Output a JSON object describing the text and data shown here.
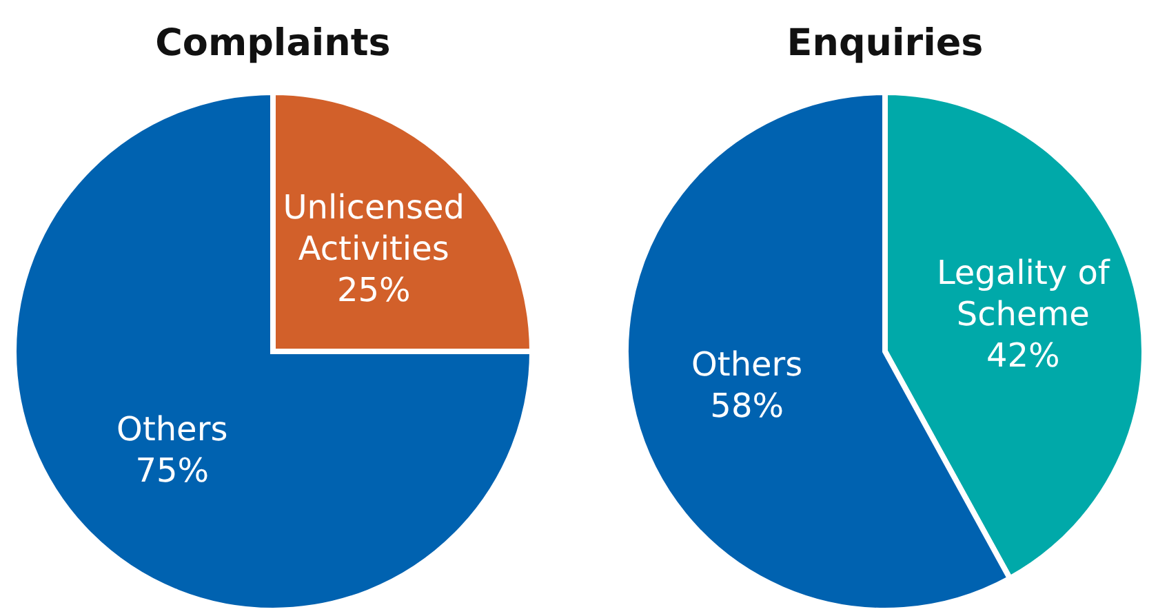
{
  "chart_data": [
    {
      "type": "pie",
      "title": "Complaints",
      "categories": [
        "Unlicensed Activities",
        "Others"
      ],
      "values": [
        25,
        75
      ],
      "colors": [
        "#d2602a",
        "#0062b0"
      ],
      "value_labels": [
        "25%",
        "75%"
      ]
    },
    {
      "type": "pie",
      "title": "Enquiries",
      "categories": [
        "Legality of Scheme",
        "Others"
      ],
      "values": [
        42,
        58
      ],
      "colors": [
        "#00a9a9",
        "#0062b0"
      ],
      "value_labels": [
        "42%",
        "58%"
      ]
    }
  ]
}
